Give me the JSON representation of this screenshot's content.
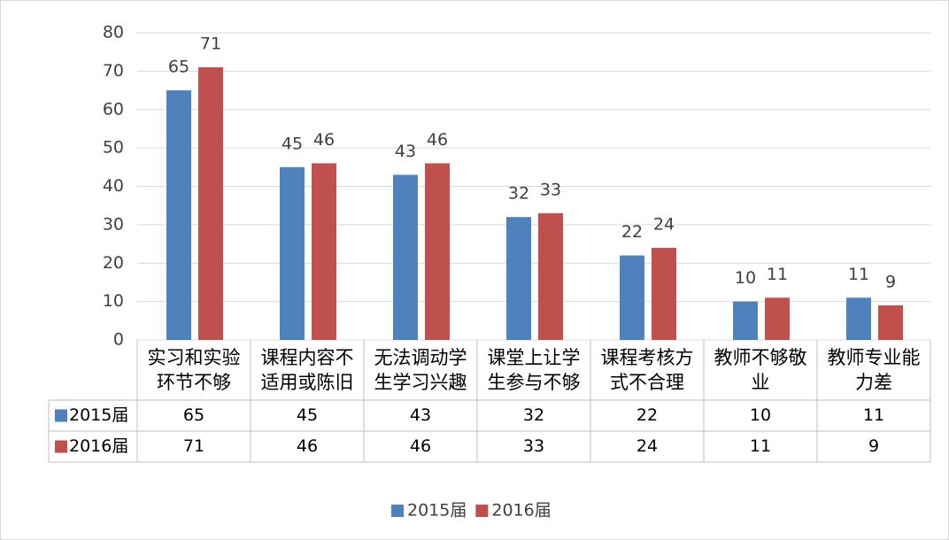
{
  "chart_data": {
    "type": "bar",
    "categories": [
      "实习和实验环节不够",
      "课程内容不适用或陈旧",
      "无法调动学生学习兴趣",
      "课堂上让学生参与不够",
      "课程考核方式不合理",
      "教师不够敬业",
      "教师专业能力差"
    ],
    "series": [
      {
        "name": "2015届",
        "color": "#4f81bd",
        "values": [
          65,
          45,
          43,
          32,
          22,
          10,
          11
        ]
      },
      {
        "name": "2016届",
        "color": "#c0504d",
        "values": [
          71,
          46,
          46,
          33,
          24,
          11,
          9
        ]
      }
    ],
    "ylim": [
      0,
      80
    ],
    "yticks": [
      0,
      10,
      20,
      30,
      40,
      50,
      60,
      70,
      80
    ],
    "grid": true,
    "data_table": true,
    "legend": "bottom"
  }
}
